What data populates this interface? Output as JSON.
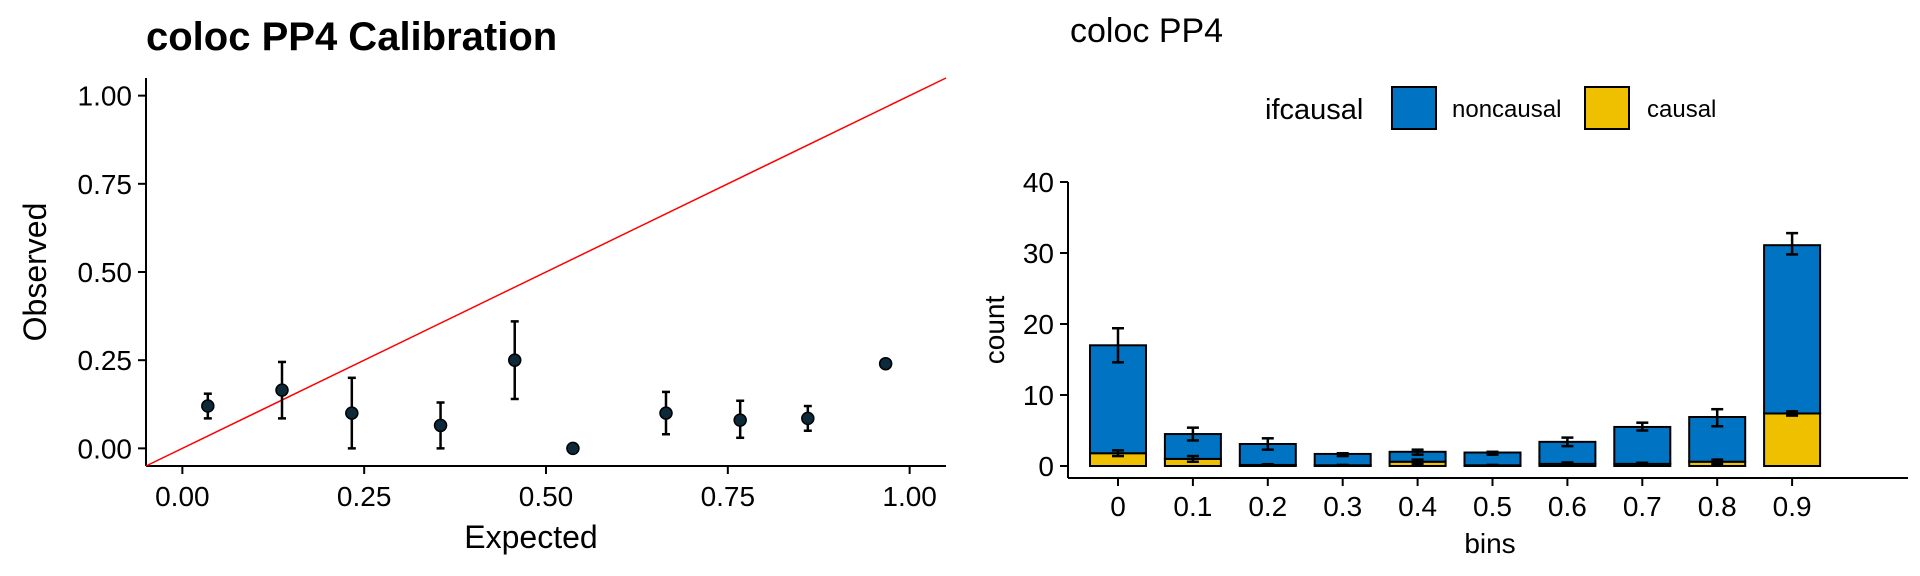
{
  "chart_data": [
    {
      "type": "scatter",
      "title": "coloc PP4 Calibration",
      "xlabel": "Expected",
      "ylabel": "Observed",
      "xlim": [
        -0.05,
        1.05
      ],
      "ylim": [
        -0.05,
        1.05
      ],
      "xticks": [
        "0.00",
        "0.25",
        "0.50",
        "0.75",
        "1.00"
      ],
      "yticks": [
        "0.00",
        "0.25",
        "0.50",
        "0.75",
        "1.00"
      ],
      "reference_line": {
        "slope": 1,
        "intercept": 0,
        "color": "#ff0000"
      },
      "point_color": "#0d2a3a",
      "points": [
        {
          "x": 0.035,
          "y": 0.12,
          "lo": 0.085,
          "hi": 0.155
        },
        {
          "x": 0.137,
          "y": 0.165,
          "lo": 0.085,
          "hi": 0.245
        },
        {
          "x": 0.233,
          "y": 0.1,
          "lo": 0.0,
          "hi": 0.2
        },
        {
          "x": 0.355,
          "y": 0.065,
          "lo": 0.0,
          "hi": 0.13
        },
        {
          "x": 0.457,
          "y": 0.25,
          "lo": 0.14,
          "hi": 0.36
        },
        {
          "x": 0.537,
          "y": 0.0,
          "lo": 0.0,
          "hi": 0.0
        },
        {
          "x": 0.665,
          "y": 0.1,
          "lo": 0.04,
          "hi": 0.16
        },
        {
          "x": 0.767,
          "y": 0.08,
          "lo": 0.03,
          "hi": 0.135
        },
        {
          "x": 0.86,
          "y": 0.085,
          "lo": 0.05,
          "hi": 0.12
        },
        {
          "x": 0.967,
          "y": 0.24,
          "lo": 0.232,
          "hi": 0.248
        }
      ],
      "grid": false
    },
    {
      "type": "bar",
      "stacked": true,
      "title": "coloc PP4",
      "xlabel": "bins",
      "ylabel": "count",
      "ylim": [
        0,
        40
      ],
      "yticks": [
        "0",
        "10",
        "20",
        "30",
        "40"
      ],
      "categories": [
        "0",
        "0.1",
        "0.2",
        "0.3",
        "0.4",
        "0.5",
        "0.6",
        "0.7",
        "0.8",
        "0.9"
      ],
      "legend": {
        "title": "ifcausal",
        "position": "top"
      },
      "series": [
        {
          "name": "causal",
          "color": "#efc000",
          "values": [
            1.8,
            1.0,
            0.15,
            0.1,
            0.6,
            0.1,
            0.3,
            0.3,
            0.6,
            7.4
          ],
          "error_lo": [
            1.4,
            0.6,
            0.05,
            0.05,
            0.3,
            0.05,
            0.1,
            0.15,
            0.3,
            7.1
          ],
          "error_hi": [
            2.2,
            1.4,
            0.25,
            0.15,
            0.9,
            0.15,
            0.5,
            0.45,
            0.9,
            7.7
          ]
        },
        {
          "name": "noncausal",
          "color": "#0073c2",
          "values": [
            15.2,
            3.5,
            2.95,
            1.6,
            1.4,
            1.8,
            3.1,
            5.2,
            6.3,
            23.7
          ],
          "error_lo": [
            14.6,
            3.6,
            2.3,
            1.4,
            1.6,
            1.6,
            2.8,
            5.0,
            5.6,
            29.8
          ],
          "error_hi": [
            19.4,
            5.4,
            3.9,
            1.8,
            2.3,
            2.0,
            4.0,
            6.1,
            8.0,
            32.8
          ]
        }
      ],
      "grid": false
    }
  ]
}
